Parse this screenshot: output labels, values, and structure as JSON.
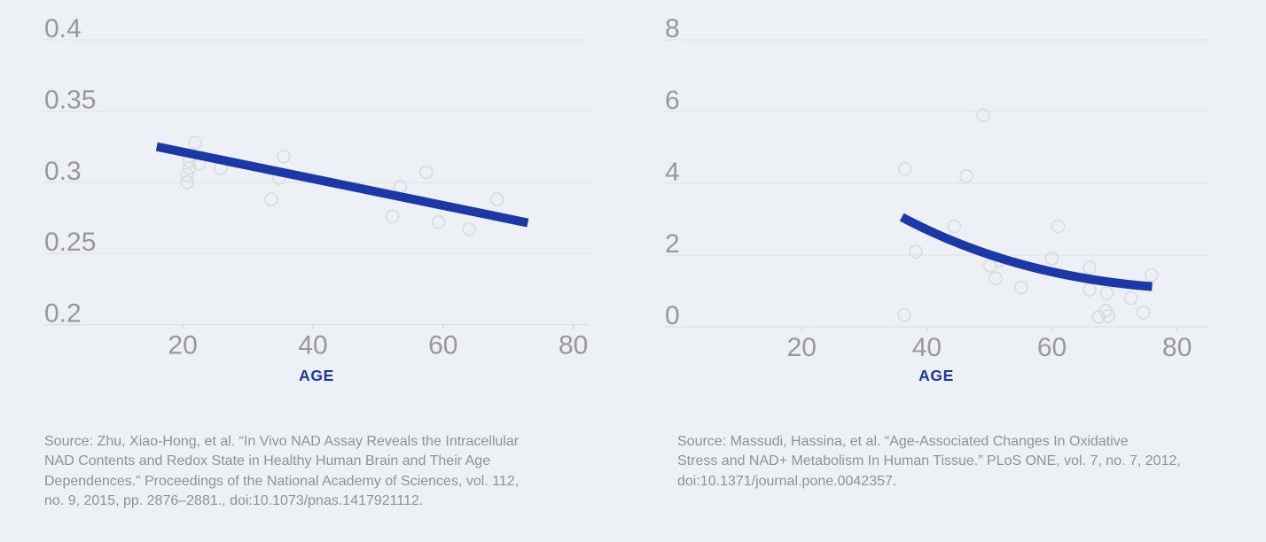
{
  "page": {
    "background": "#edf0f4"
  },
  "style": {
    "accent": "#1b38aa",
    "grid_color": "#e2e5e9",
    "axis_color": "#dcdfe4",
    "tick_mark_color": "#d6d9de",
    "tick_label_color": "#97999d",
    "point_color": "#d8dbdf",
    "source_color": "#8f9296"
  },
  "chart_data": [
    {
      "type": "scatter",
      "title": "",
      "xlabel": "AGE",
      "ylabel": "",
      "x_ticks": [
        20,
        40,
        60,
        80
      ],
      "y_ticks": [
        0.4,
        0.35,
        0.3,
        0.25,
        0.2
      ],
      "xlim": [
        -1.4,
        82.5
      ],
      "ylim": [
        0.2,
        0.4
      ],
      "grid": true,
      "legend": false,
      "points": [
        [
          21.9,
          0.328
        ],
        [
          21.0,
          0.315
        ],
        [
          22.5,
          0.313
        ],
        [
          21.0,
          0.31
        ],
        [
          20.7,
          0.305
        ],
        [
          20.7,
          0.3
        ],
        [
          25.8,
          0.31
        ],
        [
          35.5,
          0.318
        ],
        [
          34.8,
          0.303
        ],
        [
          33.6,
          0.288
        ],
        [
          53.4,
          0.297
        ],
        [
          57.4,
          0.307
        ],
        [
          52.2,
          0.276
        ],
        [
          59.3,
          0.272
        ],
        [
          64.0,
          0.267
        ],
        [
          68.3,
          0.288
        ]
      ],
      "trend": {
        "shape": "line",
        "points": [
          [
            16,
            0.325
          ],
          [
            73,
            0.2715
          ]
        ]
      },
      "source_lines": [
        "Source: Zhu, Xiao-Hong, et al. “In Vivo NAD Assay Reveals the Intracellular",
        "NAD Contents and Redox State in Healthy Human Brain and Their Age",
        "Dependences.” Proceedings of the National Academy of Sciences, vol. 112,",
        "no. 9, 2015, pp. 2876–2881., doi:10.1073/pnas.1417921112."
      ]
    },
    {
      "type": "scatter",
      "title": "",
      "xlabel": "AGE",
      "ylabel": "",
      "x_ticks": [
        20,
        40,
        60,
        80
      ],
      "y_ticks": [
        8,
        6,
        4,
        2,
        0
      ],
      "xlim": [
        -2,
        85
      ],
      "ylim": [
        0,
        8
      ],
      "grid": true,
      "legend": false,
      "points": [
        [
          49.0,
          5.9
        ],
        [
          36.5,
          4.4
        ],
        [
          46.3,
          4.2
        ],
        [
          44.4,
          2.8
        ],
        [
          61.0,
          2.8
        ],
        [
          38.2,
          2.1
        ],
        [
          36.4,
          0.33
        ],
        [
          50.1,
          1.7
        ],
        [
          51.7,
          1.85
        ],
        [
          51.0,
          1.35
        ],
        [
          55.1,
          1.1
        ],
        [
          60.0,
          1.9
        ],
        [
          66.0,
          1.65
        ],
        [
          66.0,
          1.03
        ],
        [
          68.8,
          0.94
        ],
        [
          72.6,
          0.8
        ],
        [
          75.9,
          1.44
        ],
        [
          68.6,
          0.45
        ],
        [
          67.5,
          0.28
        ],
        [
          69.0,
          0.3
        ],
        [
          74.6,
          0.4
        ]
      ],
      "trend": {
        "shape": "quadratic",
        "points": [
          [
            36,
            3.06
          ],
          [
            53.5,
            1.43
          ],
          [
            76,
            1.12
          ]
        ]
      },
      "source_lines": [
        "Source: Massudi, Hassina, et al. “Age-Associated Changes In Oxidative",
        "Stress and NAD+ Metabolism In Human Tissue.” PLoS ONE, vol. 7, no. 7, 2012,",
        "doi:10.1371/journal.pone.0042357."
      ]
    }
  ]
}
